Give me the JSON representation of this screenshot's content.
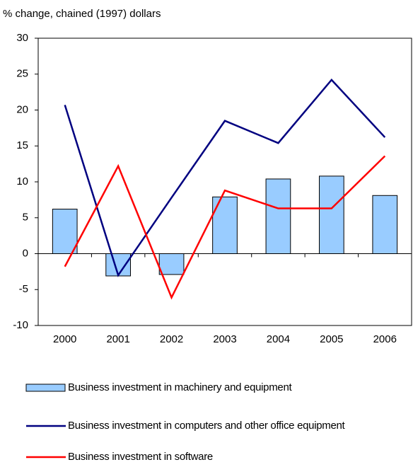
{
  "chart_data": {
    "type": "bar",
    "title": "% change, chained (1997) dollars",
    "categories": [
      "2000",
      "2001",
      "2002",
      "2003",
      "2004",
      "2005",
      "2006"
    ],
    "series": [
      {
        "name": "Business investment in machinery and equipment",
        "type": "bar",
        "color": "#99ccff",
        "values": [
          6.2,
          -3.1,
          -2.9,
          7.9,
          10.4,
          10.8,
          8.1
        ]
      },
      {
        "name": "Business investment in computers and other office equipment",
        "type": "line",
        "color": "#000080",
        "values": [
          20.7,
          -3.0,
          7.8,
          18.5,
          15.4,
          24.2,
          16.2
        ]
      },
      {
        "name": "Business investment in software",
        "type": "line",
        "color": "#ff0000",
        "values": [
          -1.8,
          12.2,
          -6.1,
          8.8,
          6.3,
          6.3,
          13.6
        ]
      }
    ],
    "ylim": [
      -10,
      30
    ],
    "yticks": [
      -10,
      -5,
      0,
      5,
      10,
      15,
      20,
      25,
      30
    ]
  }
}
